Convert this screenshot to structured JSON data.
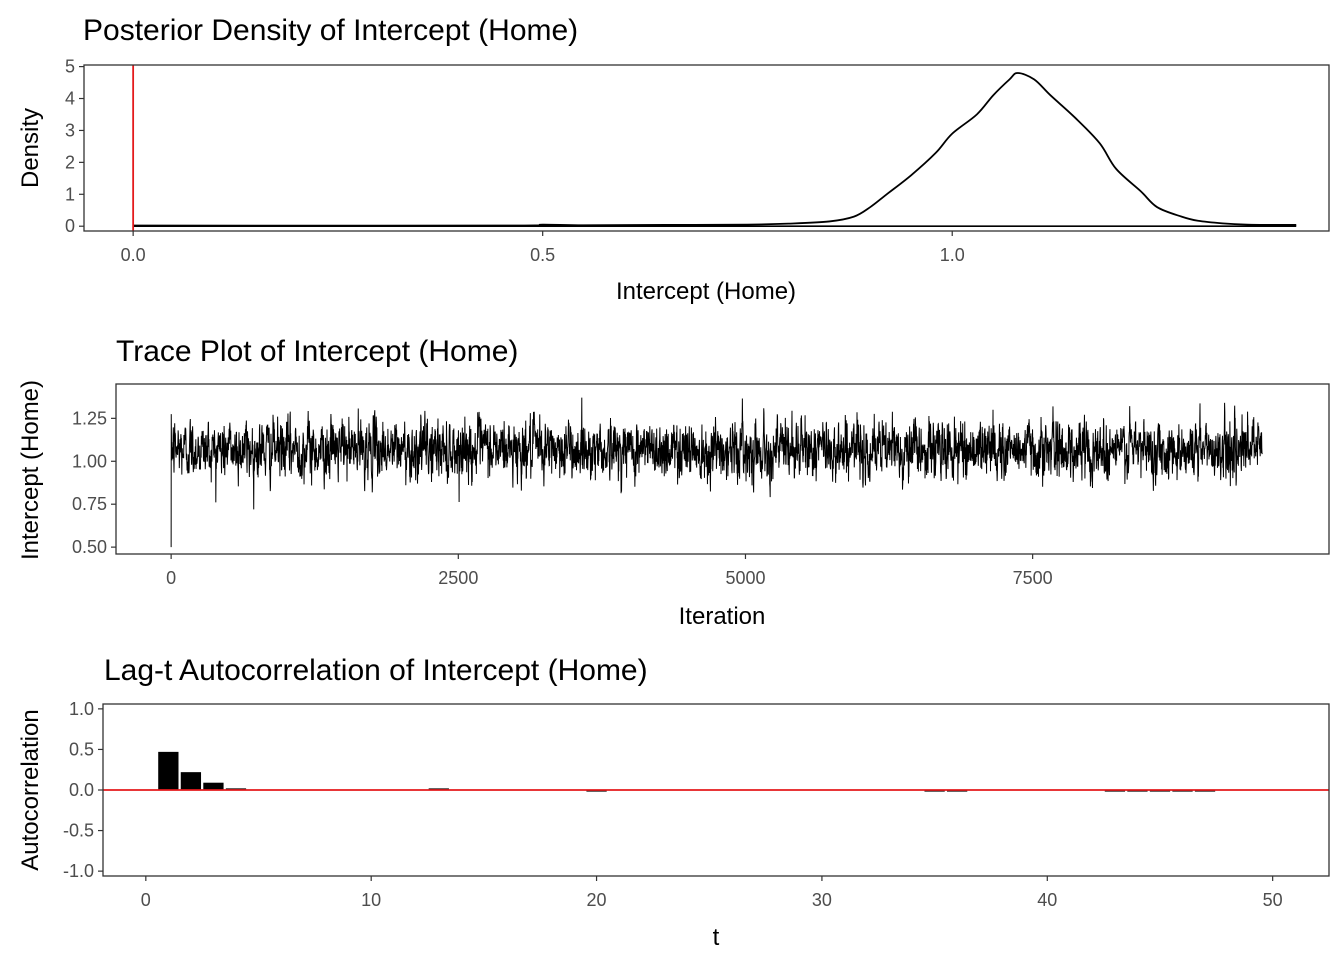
{
  "chart_data": [
    {
      "type": "line",
      "title": "Posterior Density of Intercept (Home)",
      "xlabel": "Intercept (Home)",
      "ylabel": "Density",
      "xlim": [
        -0.06,
        1.46
      ],
      "ylim": [
        -0.15,
        5.05
      ],
      "xticks": [
        0.0,
        0.5,
        1.0
      ],
      "xtick_labels": [
        "0.0",
        "0.5",
        "1.0"
      ],
      "yticks": [
        0,
        1,
        2,
        3,
        4,
        5
      ],
      "ytick_labels": [
        "0",
        "1",
        "2",
        "3",
        "4",
        "5"
      ],
      "reference_line": {
        "axis": "x",
        "value": 0.0,
        "color": "#e41a1c"
      },
      "line_color": "#000000",
      "grid": false,
      "x": [
        0.0,
        0.45,
        0.5,
        0.55,
        0.65,
        0.75,
        0.8,
        0.85,
        0.88,
        0.9,
        0.92,
        0.95,
        0.98,
        1.0,
        1.03,
        1.05,
        1.07,
        1.08,
        1.1,
        1.12,
        1.15,
        1.18,
        1.2,
        1.23,
        1.25,
        1.28,
        1.3,
        1.33,
        1.36,
        1.4,
        1.42
      ],
      "y": [
        0.02,
        0.02,
        0.05,
        0.03,
        0.04,
        0.05,
        0.08,
        0.15,
        0.3,
        0.6,
        1.0,
        1.6,
        2.3,
        2.9,
        3.5,
        4.1,
        4.6,
        4.8,
        4.6,
        4.1,
        3.4,
        2.6,
        1.8,
        1.1,
        0.6,
        0.3,
        0.17,
        0.09,
        0.05,
        0.04,
        0.04
      ]
    },
    {
      "type": "line",
      "title": "Trace Plot of Intercept (Home)",
      "xlabel": "Iteration",
      "ylabel": "Intercept (Home)",
      "xlim": [
        -480,
        10080
      ],
      "ylim": [
        0.46,
        1.45
      ],
      "xticks": [
        0,
        2500,
        5000,
        7500
      ],
      "xtick_labels": [
        "0",
        "2500",
        "5000",
        "7500"
      ],
      "yticks": [
        0.5,
        0.75,
        1.0,
        1.25
      ],
      "ytick_labels": [
        "0.50",
        "0.75",
        "1.00",
        "1.25"
      ],
      "n_iterations": 9500,
      "start_value": 0.5,
      "mean": 1.07,
      "sd": 0.082,
      "line_color": "#000000",
      "grid": false
    },
    {
      "type": "bar",
      "title": "Lag-t Autocorrelation of Intercept (Home)",
      "xlabel": "t",
      "ylabel": "Autocorrelation",
      "xlim": [
        -1.9,
        52.5
      ],
      "ylim": [
        -1.06,
        1.06
      ],
      "xticks": [
        0,
        10,
        20,
        30,
        40,
        50
      ],
      "xtick_labels": [
        "0",
        "10",
        "20",
        "30",
        "40",
        "50"
      ],
      "yticks": [
        -1.0,
        -0.5,
        0.0,
        0.5,
        1.0
      ],
      "ytick_labels": [
        "-1.0",
        "-0.5",
        "0.0",
        "0.5",
        "1.0"
      ],
      "reference_line": {
        "axis": "y",
        "value": 0.0,
        "color": "#e41a1c"
      },
      "bar_color": "#000000",
      "grid": false,
      "x": [
        1,
        2,
        3,
        4,
        13,
        20,
        35,
        36,
        43,
        44,
        45,
        46,
        47
      ],
      "values": [
        0.47,
        0.22,
        0.09,
        0.02,
        0.015,
        -0.01,
        -0.01,
        -0.01,
        -0.01,
        -0.01,
        -0.01,
        -0.01,
        -0.01
      ]
    }
  ]
}
